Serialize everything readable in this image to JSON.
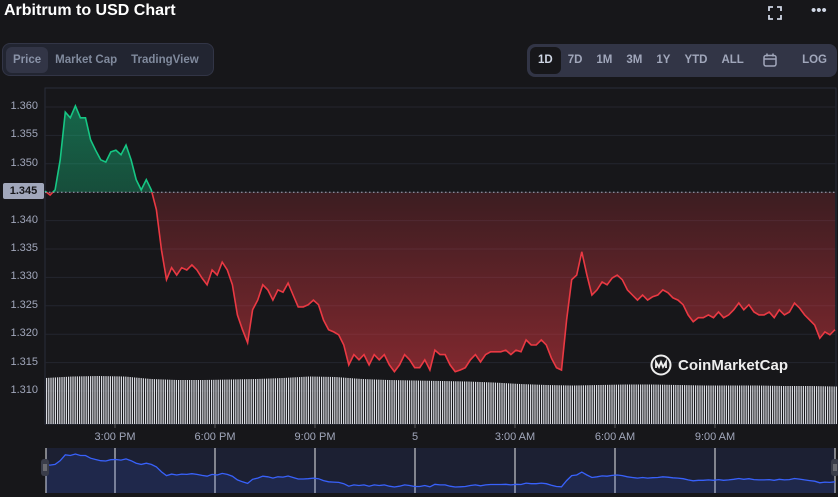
{
  "header": {
    "title": "Arbitrum to USD Chart",
    "fullscreen_icon": "fullscreen-icon",
    "more_icon": "more-icon"
  },
  "tabs": [
    {
      "label": "Price",
      "active": true
    },
    {
      "label": "Market Cap"
    },
    {
      "label": "TradingView"
    }
  ],
  "ranges": [
    {
      "label": "1D",
      "active": true
    },
    {
      "label": "7D"
    },
    {
      "label": "1M"
    },
    {
      "label": "3M"
    },
    {
      "label": "1Y"
    },
    {
      "label": "YTD"
    },
    {
      "label": "ALL"
    },
    {
      "icon": "calendar-icon"
    },
    {
      "label": "LOG"
    }
  ],
  "watermark": "CoinMarketCap",
  "chart_data": {
    "type": "line",
    "title": "Arbitrum to USD Chart",
    "ylim": [
      1.3085,
      1.3635
    ],
    "y_ticks": [
      "1.360",
      "1.355",
      "1.350",
      "1.345",
      "1.340",
      "1.335",
      "1.330",
      "1.325",
      "1.320",
      "1.315",
      "1.310"
    ],
    "x_ticks": [
      "3:00 PM",
      "6:00 PM",
      "9:00 PM",
      "5",
      "3:00 AM",
      "6:00 AM",
      "9:00 AM"
    ],
    "reference_price": 1.345,
    "reference_label": "1.345",
    "colors": {
      "up": "#16c784",
      "down": "#ea3943",
      "navigator_line": "#3861fb"
    },
    "price": [
      1.3452,
      1.3445,
      1.3454,
      1.3507,
      1.3591,
      1.3581,
      1.3602,
      1.3581,
      1.3581,
      1.3542,
      1.3524,
      1.3507,
      1.3503,
      1.3521,
      1.3524,
      1.3516,
      1.3533,
      1.3507,
      1.3472,
      1.3454,
      1.3472,
      1.3454,
      1.3419,
      1.3348,
      1.3296,
      1.3317,
      1.3304,
      1.3317,
      1.3313,
      1.3322,
      1.3313,
      1.3299,
      1.3287,
      1.3313,
      1.3304,
      1.3327,
      1.3313,
      1.3287,
      1.3234,
      1.3208,
      1.3185,
      1.3243,
      1.326,
      1.3287,
      1.3278,
      1.326,
      1.3278,
      1.3274,
      1.329,
      1.3269,
      1.3248,
      1.3248,
      1.3252,
      1.326,
      1.3252,
      1.3225,
      1.3208,
      1.3204,
      1.3199,
      1.3181,
      1.3146,
      1.3164,
      1.3155,
      1.3164,
      1.3146,
      1.3164,
      1.3155,
      1.3164,
      1.3146,
      1.3134,
      1.3146,
      1.3164,
      1.3155,
      1.3141,
      1.3141,
      1.3155,
      1.3137,
      1.3172,
      1.3164,
      1.3164,
      1.3146,
      1.3134,
      1.3137,
      1.3141,
      1.3155,
      1.3164,
      1.3151,
      1.3164,
      1.3169,
      1.3169,
      1.3169,
      1.3172,
      1.3164,
      1.3172,
      1.3169,
      1.319,
      1.3181,
      1.3181,
      1.319,
      1.3181,
      1.3158,
      1.3141,
      1.3137,
      1.3225,
      1.3296,
      1.3304,
      1.3345,
      1.3304,
      1.3269,
      1.3278,
      1.3292,
      1.3287,
      1.3299,
      1.3304,
      1.3296,
      1.3278,
      1.3269,
      1.326,
      1.3269,
      1.326,
      1.3266,
      1.3269,
      1.3278,
      1.3273,
      1.3264,
      1.326,
      1.3252,
      1.3234,
      1.3222,
      1.3229,
      1.3229,
      1.3234,
      1.3229,
      1.3239,
      1.3229,
      1.3234,
      1.3243,
      1.3255,
      1.3243,
      1.3252,
      1.3239,
      1.3234,
      1.3234,
      1.3239,
      1.3229,
      1.3243,
      1.3234,
      1.3239,
      1.3255,
      1.3246,
      1.3234,
      1.3225,
      1.3216,
      1.3193,
      1.3204,
      1.3199,
      1.3208
    ],
    "volume_relative": [
      0.92,
      0.95,
      0.96,
      0.95,
      0.9,
      0.88,
      0.88,
      0.89,
      0.9,
      0.92,
      0.95,
      0.94,
      0.9,
      0.88,
      0.87,
      0.86,
      0.85,
      0.83,
      0.8,
      0.78,
      0.77,
      0.78,
      0.79,
      0.79,
      0.78,
      0.77,
      0.77,
      0.77,
      0.76,
      0.76,
      0.75
    ]
  }
}
